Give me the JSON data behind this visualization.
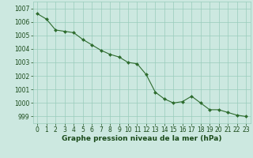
{
  "x": [
    0,
    1,
    2,
    3,
    4,
    5,
    6,
    7,
    8,
    9,
    10,
    11,
    12,
    13,
    14,
    15,
    16,
    17,
    18,
    19,
    20,
    21,
    22,
    23
  ],
  "y": [
    1006.6,
    1006.2,
    1005.4,
    1005.3,
    1005.2,
    1004.7,
    1004.3,
    1003.9,
    1003.6,
    1003.4,
    1003.0,
    1002.9,
    1002.1,
    1000.8,
    1000.3,
    1000.0,
    1000.1,
    1000.5,
    1000.0,
    999.5,
    999.5,
    999.3,
    999.1,
    999.0
  ],
  "ylim": [
    998.5,
    1007.5
  ],
  "yticks": [
    999,
    1000,
    1001,
    1002,
    1003,
    1004,
    1005,
    1006,
    1007
  ],
  "xlim": [
    -0.5,
    23.5
  ],
  "xticks": [
    0,
    1,
    2,
    3,
    4,
    5,
    6,
    7,
    8,
    9,
    10,
    11,
    12,
    13,
    14,
    15,
    16,
    17,
    18,
    19,
    20,
    21,
    22,
    23
  ],
  "line_color": "#2d6b2d",
  "marker_color": "#2d6b2d",
  "bg_color": "#cce8e0",
  "grid_color": "#99ccbb",
  "xlabel": "Graphe pression niveau de la mer (hPa)",
  "xlabel_color": "#1a4a1a",
  "xlabel_fontsize": 6.5,
  "tick_fontsize": 5.5
}
